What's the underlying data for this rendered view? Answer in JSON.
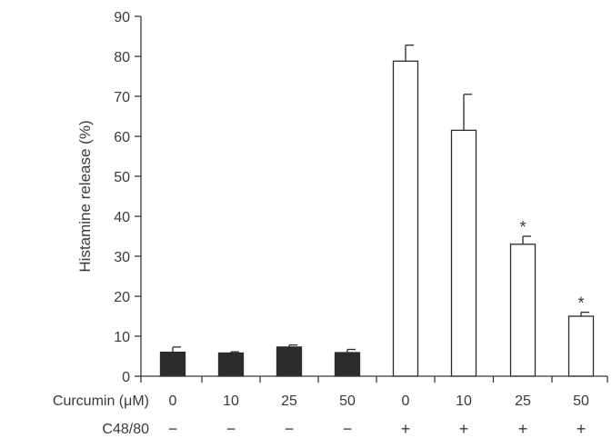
{
  "chart_data": {
    "type": "bar",
    "ylabel": "Histamine release (%)",
    "ylim": [
      0,
      90
    ],
    "yticks": [
      0,
      10,
      20,
      30,
      40,
      50,
      60,
      70,
      80,
      90
    ],
    "grid": false,
    "legend": "none",
    "x_row_labels": {
      "curcumin": "Curcumin (μM)",
      "c4880": "C48/80"
    },
    "categories": [
      "0",
      "10",
      "25",
      "50",
      "0",
      "10",
      "25",
      "50"
    ],
    "c4880_signs": [
      "−",
      "−",
      "−",
      "−",
      "+",
      "+",
      "+",
      "+"
    ],
    "values": [
      6,
      5.8,
      7.3,
      5.9,
      78.8,
      61.5,
      33,
      15
    ],
    "errors": [
      1.3,
      0.3,
      0.5,
      0.8,
      4.0,
      9.0,
      2.0,
      1.0
    ],
    "significance": [
      "",
      "",
      "",
      "",
      "",
      "",
      "*",
      "*"
    ],
    "bar_colors": [
      "#2b2b2b",
      "#2b2b2b",
      "#2b2b2b",
      "#2b2b2b",
      "#ffffff",
      "#ffffff",
      "#ffffff",
      "#ffffff"
    ],
    "axis_color": "#3a3a3a"
  }
}
